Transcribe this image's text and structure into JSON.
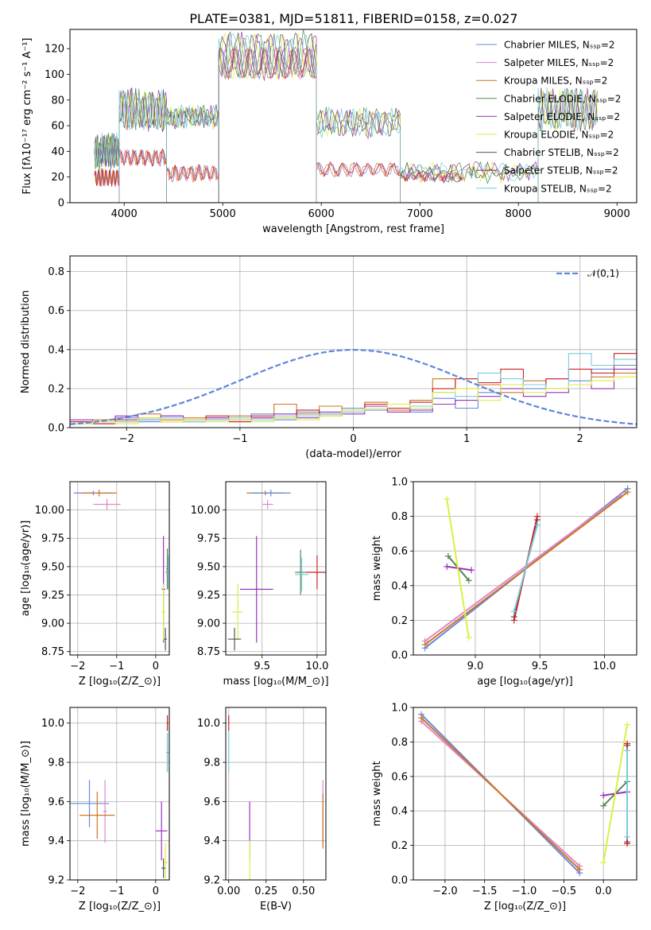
{
  "figure": {
    "title": "PLATE=0381, MJD=51811, FIBERID=0158, z=0.027"
  },
  "chart_data": [
    {
      "id": "spectrum",
      "type": "line",
      "xlabel": "wavelength [Angstrom, rest frame]",
      "ylabel": "Flux [fλ10⁻¹⁷ erg cm⁻² s⁻¹ A⁻¹]",
      "xlim": [
        3450,
        9200
      ],
      "ylim": [
        0,
        135
      ],
      "xticks": [
        4000,
        5000,
        6000,
        7000,
        8000,
        9000
      ],
      "yticks": [
        0,
        20,
        40,
        60,
        80,
        100,
        120
      ],
      "legend_position": "top-right",
      "series": [
        {
          "name": "Chabrier MILES, N$_{SSP}$=2",
          "color": "#6688dd",
          "group": "miles_low"
        },
        {
          "name": "Salpeter MILES, N$_{SSP}$=2",
          "color": "#dd88cc",
          "group": "miles_low"
        },
        {
          "name": "Kroupa MILES, N$_{SSP}$=2",
          "color": "#cc7722",
          "group": "miles_low"
        },
        {
          "name": "Chabrier ELODIE, N$_{SSP}$=2",
          "color": "#558855",
          "group": "elodie_high"
        },
        {
          "name": "Salpeter ELODIE, N$_{SSP}$=2",
          "color": "#9933bb",
          "group": "elodie_high"
        },
        {
          "name": "Kroupa ELODIE, N$_{SSP}$=2",
          "color": "#ddee44",
          "group": "elodie_high"
        },
        {
          "name": "Chabrier STELIB, N$_{SSP}$=2",
          "color": "#555555",
          "group": "stelib_high"
        },
        {
          "name": "Salpeter STELIB, N$_{SSP}$=2",
          "color": "#cc2222",
          "group": "stelib_low"
        },
        {
          "name": "Kroupa STELIB, N$_{SSP}$=2",
          "color": "#77ccdd",
          "group": "stelib_high"
        }
      ],
      "segments_low": [
        {
          "x": [
            3700,
            3950
          ],
          "y": [
            14,
            25
          ]
        },
        {
          "x": [
            3950,
            4430
          ],
          "y": [
            30,
            40
          ]
        },
        {
          "x": [
            4430,
            4960
          ],
          "y": [
            18,
            28
          ]
        },
        {
          "x": [
            4960,
            5950
          ],
          "y": [
            98,
            120
          ]
        },
        {
          "x": [
            5950,
            6800
          ],
          "y": [
            22,
            30
          ]
        },
        {
          "x": [
            6800,
            7430
          ],
          "y": [
            18,
            22
          ]
        }
      ],
      "segments_high": [
        {
          "x": [
            3700,
            3950
          ],
          "y": [
            30,
            50
          ]
        },
        {
          "x": [
            3950,
            4430
          ],
          "y": [
            60,
            85
          ]
        },
        {
          "x": [
            4430,
            4960
          ],
          "y": [
            62,
            72
          ]
        },
        {
          "x": [
            4960,
            5950
          ],
          "y": [
            100,
            130
          ]
        },
        {
          "x": [
            5950,
            6800
          ],
          "y": [
            55,
            70
          ]
        },
        {
          "x": [
            6800,
            8200
          ],
          "y": [
            20,
            28
          ]
        },
        {
          "x": [
            8200,
            8800
          ],
          "y": [
            60,
            85
          ]
        }
      ]
    },
    {
      "id": "residual_hist",
      "type": "line",
      "xlabel": "(data-model)/error",
      "ylabel": "Normed distribution",
      "xlim": [
        -2.5,
        2.5
      ],
      "ylim": [
        0,
        0.88
      ],
      "xticks": [
        -2,
        -1,
        0,
        1,
        2
      ],
      "yticks": [
        0.0,
        0.2,
        0.4,
        0.6,
        0.8
      ],
      "legend_position": "top-right",
      "gaussian": {
        "name": "$\\mathcal{N}(0,1)$",
        "mean": 0,
        "sigma": 1,
        "color": "#5e86d8"
      },
      "bin_edges": [
        -2.5,
        -2.3,
        -2.1,
        -1.9,
        -1.7,
        -1.5,
        -1.3,
        -1.1,
        -0.9,
        -0.7,
        -0.5,
        -0.3,
        -0.1,
        0.1,
        0.3,
        0.5,
        0.7,
        0.9,
        1.1,
        1.3,
        1.5,
        1.7,
        1.9,
        2.1,
        2.3,
        2.5
      ],
      "hist_series": [
        {
          "color": "#6688dd",
          "values": [
            0.03,
            0.02,
            0.05,
            0.03,
            0.06,
            0.04,
            0.05,
            0.03,
            0.07,
            0.04,
            0.08,
            0.06,
            0.1,
            0.09,
            0.12,
            0.08,
            0.15,
            0.1,
            0.18,
            0.22,
            0.2,
            0.25,
            0.24,
            0.3,
            0.32
          ]
        },
        {
          "color": "#cc7722",
          "values": [
            0.02,
            0.04,
            0.03,
            0.07,
            0.04,
            0.05,
            0.04,
            0.06,
            0.05,
            0.12,
            0.07,
            0.11,
            0.08,
            0.13,
            0.09,
            0.14,
            0.25,
            0.2,
            0.22,
            0.18,
            0.24,
            0.2,
            0.22,
            0.26,
            0.28
          ]
        },
        {
          "color": "#9933bb",
          "values": [
            0.04,
            0.03,
            0.06,
            0.04,
            0.06,
            0.03,
            0.05,
            0.04,
            0.05,
            0.07,
            0.05,
            0.08,
            0.07,
            0.11,
            0.08,
            0.09,
            0.12,
            0.14,
            0.16,
            0.2,
            0.16,
            0.18,
            0.22,
            0.2,
            0.3
          ]
        },
        {
          "color": "#cc2222",
          "values": [
            0.03,
            0.02,
            0.04,
            0.05,
            0.03,
            0.04,
            0.06,
            0.03,
            0.06,
            0.05,
            0.09,
            0.07,
            0.09,
            0.12,
            0.1,
            0.13,
            0.2,
            0.25,
            0.23,
            0.3,
            0.22,
            0.25,
            0.3,
            0.28,
            0.38
          ]
        },
        {
          "color": "#77ccdd",
          "values": [
            0.02,
            0.03,
            0.03,
            0.04,
            0.05,
            0.03,
            0.04,
            0.05,
            0.04,
            0.06,
            0.06,
            0.07,
            0.08,
            0.1,
            0.12,
            0.11,
            0.18,
            0.16,
            0.28,
            0.25,
            0.22,
            0.2,
            0.38,
            0.32,
            0.35
          ]
        },
        {
          "color": "#ddee44",
          "values": [
            0.02,
            0.03,
            0.02,
            0.05,
            0.03,
            0.04,
            0.03,
            0.04,
            0.03,
            0.05,
            0.04,
            0.06,
            0.09,
            0.1,
            0.12,
            0.1,
            0.18,
            0.2,
            0.14,
            0.22,
            0.18,
            0.2,
            0.22,
            0.24,
            0.26
          ]
        }
      ]
    },
    {
      "id": "age_vs_Z",
      "type": "scatter",
      "xlabel": "Z [log$_{10}$($Z/Z_\\odot$)]",
      "ylabel": "age  [log$_{10}$($age/yr$)]",
      "xlim": [
        -2.2,
        0.35
      ],
      "ylim": [
        8.72,
        10.25
      ],
      "xticks": [
        -2,
        -1,
        0
      ],
      "yticks": [
        8.75,
        9.0,
        9.25,
        9.5,
        9.75,
        10.0
      ],
      "points": [
        {
          "color": "#6688dd",
          "x": -1.6,
          "xerr": 0.5,
          "y": 10.15,
          "yerr": 0.02
        },
        {
          "color": "#dd88cc",
          "x": -1.25,
          "xerr": 0.35,
          "y": 10.05,
          "yerr": 0.05
        },
        {
          "color": "#cc7722",
          "x": -1.45,
          "xerr": 0.45,
          "y": 10.15,
          "yerr": 0.03
        },
        {
          "color": "#9933bb",
          "x": 0.2,
          "xerr": 0.05,
          "y": 9.3,
          "yerr": 0.47
        },
        {
          "color": "#cc2222",
          "x": 0.3,
          "xerr": 0.04,
          "y": 9.45,
          "yerr": 0.15
        },
        {
          "color": "#558855",
          "x": 0.3,
          "xerr": 0.03,
          "y": 9.48,
          "yerr": 0.18
        },
        {
          "color": "#77ccdd",
          "x": 0.32,
          "xerr": 0.03,
          "y": 9.45,
          "yerr": 0.15
        },
        {
          "color": "#ddee44",
          "x": 0.2,
          "xerr": 0.05,
          "y": 9.1,
          "yerr": 0.25
        },
        {
          "color": "#555555",
          "x": 0.25,
          "xerr": 0.04,
          "y": 8.86,
          "yerr": 0.1
        }
      ]
    },
    {
      "id": "age_vs_mass",
      "type": "scatter",
      "xlabel": "mass [log$_{10}$($M/M_\\odot$)]",
      "ylabel": "",
      "xlim": [
        9.17,
        10.08
      ],
      "ylim": [
        8.72,
        10.25
      ],
      "xticks": [
        9.5,
        10.0
      ],
      "yticks": [
        8.75,
        9.0,
        9.25,
        9.5,
        9.75,
        10.0
      ],
      "points": [
        {
          "color": "#cc7722",
          "x": 9.53,
          "xerr": 0.17,
          "y": 10.15,
          "yerr": 0.02
        },
        {
          "color": "#6688dd",
          "x": 9.58,
          "xerr": 0.18,
          "y": 10.15,
          "yerr": 0.03
        },
        {
          "color": "#dd88cc",
          "x": 9.55,
          "xerr": 0.05,
          "y": 10.05,
          "yerr": 0.04
        },
        {
          "color": "#9933bb",
          "x": 9.45,
          "xerr": 0.15,
          "y": 9.3,
          "yerr": 0.47
        },
        {
          "color": "#ddee44",
          "x": 9.28,
          "xerr": 0.05,
          "y": 9.1,
          "yerr": 0.25
        },
        {
          "color": "#555555",
          "x": 9.25,
          "xerr": 0.06,
          "y": 8.86,
          "yerr": 0.1
        },
        {
          "color": "#cc2222",
          "x": 10.0,
          "xerr": 0.1,
          "y": 9.45,
          "yerr": 0.15
        },
        {
          "color": "#558855",
          "x": 9.85,
          "xerr": 0.05,
          "y": 9.45,
          "yerr": 0.2
        },
        {
          "color": "#77ccdd",
          "x": 9.86,
          "xerr": 0.06,
          "y": 9.43,
          "yerr": 0.15
        }
      ]
    },
    {
      "id": "mass_weight_vs_age",
      "type": "line",
      "xlabel": "age  [log$_{10}$($age/yr$)]",
      "ylabel": "mass weight",
      "xlim": [
        8.52,
        10.25
      ],
      "ylim": [
        0,
        1.0
      ],
      "xticks": [
        9.0,
        9.5,
        10.0
      ],
      "yticks": [
        0.0,
        0.2,
        0.4,
        0.6,
        0.8,
        1.0
      ],
      "series": [
        {
          "color": "#6688dd",
          "x": [
            8.61,
            10.18
          ],
          "y": [
            0.04,
            0.96
          ]
        },
        {
          "color": "#dd88cc",
          "x": [
            8.61,
            10.13
          ],
          "y": [
            0.08,
            0.92
          ]
        },
        {
          "color": "#cc7722",
          "x": [
            8.61,
            10.18
          ],
          "y": [
            0.06,
            0.94
          ]
        },
        {
          "color": "#558855",
          "x": [
            8.79,
            8.95
          ],
          "y": [
            0.57,
            0.43
          ]
        },
        {
          "color": "#9933bb",
          "x": [
            8.78,
            8.97
          ],
          "y": [
            0.51,
            0.49
          ]
        },
        {
          "color": "#ddee44",
          "x": [
            8.78,
            8.95
          ],
          "y": [
            0.9,
            0.1
          ]
        },
        {
          "color": "#555555",
          "x": [
            9.3,
            9.48
          ],
          "y": [
            0.22,
            0.78
          ]
        },
        {
          "color": "#cc2222",
          "x": [
            9.3,
            9.48
          ],
          "y": [
            0.2,
            0.8
          ]
        },
        {
          "color": "#77ccdd",
          "x": [
            9.3,
            9.48
          ],
          "y": [
            0.25,
            0.75
          ]
        }
      ]
    },
    {
      "id": "mass_vs_Z",
      "type": "scatter",
      "xlabel": "Z [log$_{10}$($Z/Z_\\odot$)]",
      "ylabel": "mass [log$_{10}$($M/M_\\odot$)]",
      "xlim": [
        -2.2,
        0.35
      ],
      "ylim": [
        9.2,
        10.08
      ],
      "xticks": [
        -2,
        -1,
        0
      ],
      "yticks": [
        9.2,
        9.4,
        9.6,
        9.8,
        10.0
      ],
      "points": [
        {
          "color": "#6688dd",
          "x": -1.7,
          "xerr": 0.5,
          "y": 9.59,
          "yerr": 0.12
        },
        {
          "color": "#dd88cc",
          "x": -1.3,
          "xerr": 0.05,
          "y": 9.55,
          "yerr": 0.16
        },
        {
          "color": "#cc7722",
          "x": -1.5,
          "xerr": 0.45,
          "y": 9.53,
          "yerr": 0.12
        },
        {
          "color": "#9933bb",
          "x": 0.15,
          "xerr": 0.15,
          "y": 9.45,
          "yerr": 0.15
        },
        {
          "color": "#ddee44",
          "x": 0.25,
          "xerr": 0.05,
          "y": 9.29,
          "yerr": 0.1
        },
        {
          "color": "#555555",
          "x": 0.2,
          "xerr": 0.05,
          "y": 9.26,
          "yerr": 0.05
        },
        {
          "color": "#cc2222",
          "x": 0.3,
          "xerr": 0.02,
          "y": 10.0,
          "yerr": 0.04
        },
        {
          "color": "#558855",
          "x": 0.3,
          "xerr": 0.03,
          "y": 9.85,
          "yerr": 0.1
        },
        {
          "color": "#77ccdd",
          "x": 0.3,
          "xerr": 0.02,
          "y": 9.85,
          "yerr": 0.1
        }
      ]
    },
    {
      "id": "mass_vs_ebv",
      "type": "scatter",
      "xlabel": "E(B-V)",
      "ylabel": "",
      "xlim": [
        -0.02,
        0.65
      ],
      "ylim": [
        9.2,
        10.08
      ],
      "xticks": [
        0.0,
        0.25,
        0.5
      ],
      "yticks": [
        9.2,
        9.4,
        9.6,
        9.8,
        10.0
      ],
      "points": [
        {
          "color": "#cc2222",
          "x": 0.0,
          "xerr": 0.0,
          "y": 10.0,
          "yerr": 0.04
        },
        {
          "color": "#77ccdd",
          "x": 0.0,
          "xerr": 0.0,
          "y": 9.85,
          "yerr": 0.1
        },
        {
          "color": "#9933bb",
          "x": 0.14,
          "xerr": 0.0,
          "y": 9.45,
          "yerr": 0.15
        },
        {
          "color": "#ddee44",
          "x": 0.14,
          "xerr": 0.0,
          "y": 9.3,
          "yerr": 0.1
        },
        {
          "color": "#dd88cc",
          "x": 0.63,
          "xerr": 0.0,
          "y": 9.55,
          "yerr": 0.16
        },
        {
          "color": "#cc7722",
          "x": 0.63,
          "xerr": 0.0,
          "y": 9.5,
          "yerr": 0.14
        }
      ]
    },
    {
      "id": "mass_weight_vs_Z",
      "type": "line",
      "xlabel": "Z [log$_{10}$($Z/Z_\\odot$)]",
      "ylabel": "mass weight",
      "xlim": [
        -2.4,
        0.42
      ],
      "ylim": [
        0,
        1.0
      ],
      "xticks": [
        -2.0,
        -1.5,
        -1.0,
        -0.5,
        0.0
      ],
      "yticks": [
        0.0,
        0.2,
        0.4,
        0.6,
        0.8,
        1.0
      ],
      "series": [
        {
          "color": "#6688dd",
          "x": [
            -2.3,
            -0.3
          ],
          "y": [
            0.96,
            0.04
          ]
        },
        {
          "color": "#dd88cc",
          "x": [
            -2.3,
            -0.3
          ],
          "y": [
            0.92,
            0.08
          ]
        },
        {
          "color": "#cc7722",
          "x": [
            -2.3,
            -0.3
          ],
          "y": [
            0.94,
            0.06
          ]
        },
        {
          "color": "#558855",
          "x": [
            0.0,
            0.3
          ],
          "y": [
            0.43,
            0.57
          ]
        },
        {
          "color": "#9933bb",
          "x": [
            0.0,
            0.3
          ],
          "y": [
            0.49,
            0.51
          ]
        },
        {
          "color": "#ddee44",
          "x": [
            0.0,
            0.3
          ],
          "y": [
            0.1,
            0.9
          ]
        },
        {
          "color": "#555555",
          "x": [
            0.3,
            0.3
          ],
          "y": [
            0.22,
            0.78
          ]
        },
        {
          "color": "#cc2222",
          "x": [
            0.3,
            0.3
          ],
          "y": [
            0.21,
            0.79
          ]
        },
        {
          "color": "#77ccdd",
          "x": [
            0.3,
            0.3
          ],
          "y": [
            0.25,
            0.75
          ]
        }
      ]
    }
  ]
}
